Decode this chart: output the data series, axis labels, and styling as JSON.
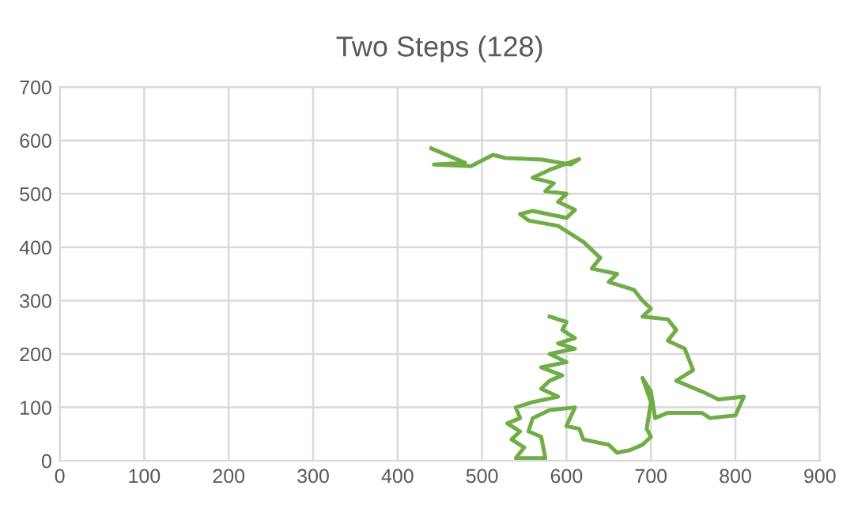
{
  "chart_data": {
    "type": "line",
    "title": "Two Steps (128)",
    "x": [
      440,
      480,
      443,
      487,
      513,
      528,
      571,
      605,
      615,
      580,
      560,
      585,
      575,
      600,
      590,
      610,
      600,
      560,
      545,
      555,
      590,
      620,
      640,
      630,
      660,
      650,
      680,
      690,
      700,
      690,
      720,
      730,
      720,
      740,
      745,
      750,
      730,
      760,
      780,
      810,
      800,
      770,
      760,
      720,
      705,
      700,
      690,
      700,
      695,
      700,
      690,
      675,
      660,
      650,
      620,
      615,
      600,
      610,
      580,
      560,
      555,
      570,
      575,
      540,
      550,
      535,
      545,
      530,
      545,
      540,
      560,
      590,
      570,
      580,
      595,
      570,
      600,
      580,
      610,
      590,
      610,
      595,
      600,
      580
    ],
    "series": [
      {
        "color": "#70ad47",
        "values": [
          585,
          558,
          555,
          552,
          573,
          567,
          564,
          555,
          565,
          545,
          530,
          520,
          505,
          500,
          485,
          470,
          455,
          468,
          462,
          450,
          440,
          410,
          380,
          360,
          350,
          335,
          320,
          300,
          285,
          270,
          265,
          245,
          225,
          210,
          190,
          170,
          150,
          130,
          115,
          120,
          85,
          80,
          90,
          90,
          80,
          130,
          155,
          110,
          60,
          45,
          30,
          20,
          15,
          30,
          40,
          60,
          65,
          100,
          95,
          80,
          55,
          45,
          5,
          5,
          25,
          40,
          55,
          70,
          80,
          100,
          110,
          120,
          135,
          150,
          160,
          175,
          185,
          200,
          210,
          220,
          230,
          245,
          260,
          270
        ]
      }
    ],
    "xlim": [
      0,
      900
    ],
    "xticks": [
      0,
      100,
      200,
      300,
      400,
      500,
      600,
      700,
      800,
      900
    ],
    "ylim": [
      0,
      700
    ],
    "yticks": [
      0,
      100,
      200,
      300,
      400,
      500,
      600,
      700
    ],
    "grid": true,
    "marker": "none",
    "line_style": "solid"
  }
}
